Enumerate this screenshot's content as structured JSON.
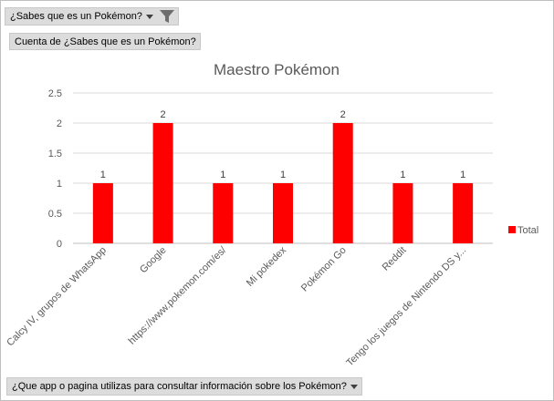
{
  "filter_field": {
    "label": "¿Sabes que es un Pokémon?",
    "icons": [
      "dropdown-arrow-icon",
      "filter-icon"
    ]
  },
  "value_field": {
    "label": "Cuenta de ¿Sabes que es un Pokémon?"
  },
  "axis_field": {
    "label": "¿Que app o pagina utilizas para consultar información sobre los Pokémon?",
    "icon": "dropdown-arrow-icon"
  },
  "chart_data": {
    "type": "bar",
    "title": "Maestro Pokémon",
    "categories": [
      "Calcy IV, grupos de WhatsApp",
      "Google",
      "https://www.pokemon.com/es/",
      "Mi pokedex",
      "Pokémon Go",
      "Reddit",
      "Tengo los juegos de Nintendo DS y..."
    ],
    "series": [
      {
        "name": "Total",
        "values": [
          1,
          2,
          1,
          1,
          2,
          1,
          1
        ],
        "color": "#ff0000"
      }
    ],
    "yticks": [
      "0",
      "0.5",
      "1",
      "1.5",
      "2",
      "2.5"
    ],
    "ylim": [
      0,
      2.5
    ],
    "grid": true,
    "legend": "right"
  }
}
